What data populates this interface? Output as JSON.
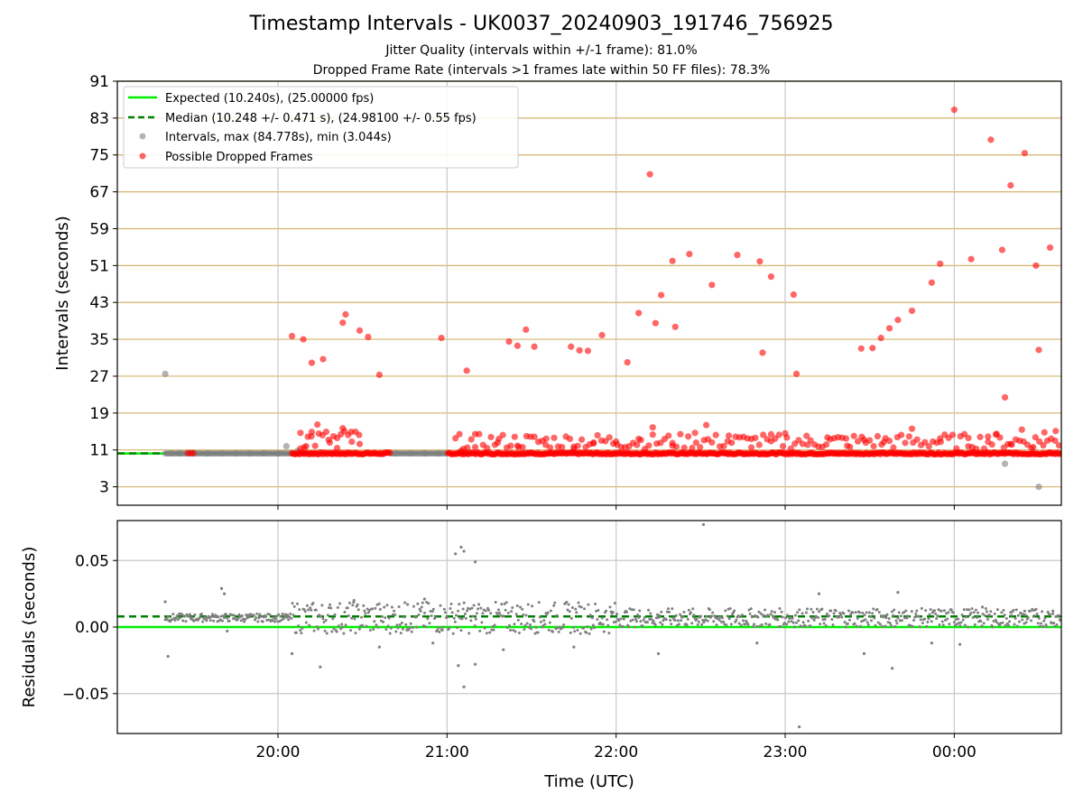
{
  "title": "Timestamp Intervals - UK0037_20240903_191746_756925",
  "subtitle_lines": [
    "Jitter Quality (intervals within +/-1 frame): 81.0%",
    "Dropped Frame Rate (intervals >1 frames late within 50 FF files): 78.3%"
  ],
  "colors": {
    "expected": "#00ee00",
    "median": "#008000",
    "intervals": "#808080",
    "dropped": "#ff0000",
    "hgrid_top": "#d4b36a",
    "grid": "#c8c8c8",
    "axis": "#000000"
  },
  "chart_data": [
    {
      "type": "scatter",
      "panel": "intervals",
      "xlabel": "",
      "ylabel": "Intervals (seconds)",
      "xlim": [
        "19:03",
        "00:38"
      ],
      "ylim": [
        -1,
        91
      ],
      "yticks": [
        3,
        11,
        19,
        27,
        35,
        43,
        51,
        59,
        67,
        75,
        83,
        91
      ],
      "xticks": [
        "20:00",
        "21:00",
        "22:00",
        "23:00",
        "00:00"
      ],
      "xtick_labels_shown": false,
      "grid": "horizontal and vertical",
      "legend_position": "top-left",
      "legend": [
        "Expected (10.240s), (25.00000 fps)",
        "Median (10.248 +/- 0.471 s), (24.98100 +/- 0.55 fps)",
        "Intervals, max (84.778s), min (3.044s)",
        "Possible Dropped Frames"
      ],
      "reference_lines": {
        "expected": 10.24,
        "median": 10.248
      },
      "series": [
        {
          "name": "Intervals, max (84.778s), min (3.044s)",
          "points": [
            [
              "19:20",
              27.5
            ],
            [
              "20:03",
              11.8
            ],
            [
              "20:07",
              10.8
            ],
            [
              "00:18",
              8.0
            ],
            [
              "00:30",
              3.0
            ],
            [
              "19:22",
              10.24
            ],
            [
              "19:25",
              10.24
            ],
            [
              "19:30",
              10.24
            ],
            [
              "19:35",
              10.24
            ],
            [
              "19:40",
              10.24
            ],
            [
              "19:45",
              10.24
            ],
            [
              "19:50",
              10.24
            ],
            [
              "19:55",
              10.24
            ],
            [
              "20:00",
              10.24
            ],
            [
              "20:42",
              10.24
            ],
            [
              "20:47",
              10.24
            ],
            [
              "20:52",
              10.24
            ],
            [
              "20:57",
              10.24
            ]
          ]
        },
        {
          "name": "Possible Dropped Frames",
          "points": [
            [
              "20:05",
              35.7
            ],
            [
              "20:09",
              35.0
            ],
            [
              "20:12",
              29.9
            ],
            [
              "20:16",
              30.7
            ],
            [
              "20:23",
              38.6
            ],
            [
              "20:24",
              40.4
            ],
            [
              "20:29",
              36.9
            ],
            [
              "20:32",
              35.5
            ],
            [
              "20:36",
              27.3
            ],
            [
              "20:58",
              35.3
            ],
            [
              "21:07",
              28.2
            ],
            [
              "21:22",
              34.5
            ],
            [
              "21:25",
              33.6
            ],
            [
              "21:28",
              37.1
            ],
            [
              "21:31",
              33.4
            ],
            [
              "21:44",
              33.4
            ],
            [
              "21:47",
              32.6
            ],
            [
              "21:50",
              32.5
            ],
            [
              "21:55",
              35.9
            ],
            [
              "22:04",
              30.0
            ],
            [
              "22:08",
              40.7
            ],
            [
              "22:12",
              70.8
            ],
            [
              "22:14",
              38.5
            ],
            [
              "22:16",
              44.6
            ],
            [
              "22:20",
              52.0
            ],
            [
              "22:21",
              37.7
            ],
            [
              "22:26",
              53.5
            ],
            [
              "22:34",
              46.8
            ],
            [
              "22:43",
              53.3
            ],
            [
              "22:51",
              51.9
            ],
            [
              "22:52",
              32.1
            ],
            [
              "22:55",
              48.6
            ],
            [
              "23:03",
              44.7
            ],
            [
              "23:04",
              27.5
            ],
            [
              "23:27",
              33.0
            ],
            [
              "23:31",
              33.1
            ],
            [
              "23:34",
              35.3
            ],
            [
              "23:37",
              37.4
            ],
            [
              "23:40",
              39.2
            ],
            [
              "23:45",
              41.2
            ],
            [
              "23:52",
              47.3
            ],
            [
              "23:55",
              51.4
            ],
            [
              "00:00",
              84.8
            ],
            [
              "00:06",
              52.4
            ],
            [
              "00:13",
              78.3
            ],
            [
              "00:17",
              54.4
            ],
            [
              "00:18",
              22.4
            ],
            [
              "00:20",
              68.4
            ],
            [
              "00:25",
              75.4
            ],
            [
              "00:29",
              51.0
            ],
            [
              "00:30",
              32.7
            ],
            [
              "00:34",
              54.9
            ],
            [
              "19:28",
              10.3
            ],
            [
              "19:29",
              10.3
            ],
            [
              "19:30",
              10.3
            ],
            [
              "20:08",
              14.7
            ],
            [
              "20:10",
              11.8
            ],
            [
              "20:12",
              14.9
            ],
            [
              "20:14",
              16.5
            ],
            [
              "20:18",
              13.2
            ],
            [
              "20:21",
              11.4
            ],
            [
              "20:23",
              15.7
            ],
            [
              "20:26",
              14.9
            ],
            [
              "20:29",
              12.3
            ],
            [
              "21:05",
              10.8
            ],
            [
              "21:10",
              11.6
            ],
            [
              "21:18",
              12.6
            ],
            [
              "21:25",
              11.9
            ],
            [
              "21:35",
              12.1
            ],
            [
              "21:45",
              11.7
            ],
            [
              "21:52",
              12.4
            ],
            [
              "22:00",
              12.8
            ],
            [
              "22:08",
              13.4
            ],
            [
              "22:13",
              15.9
            ],
            [
              "22:20",
              12.5
            ],
            [
              "22:28",
              14.7
            ],
            [
              "22:32",
              16.4
            ],
            [
              "22:40",
              14.1
            ],
            [
              "22:48",
              13.4
            ],
            [
              "22:55",
              12.9
            ],
            [
              "23:00",
              14.6
            ],
            [
              "23:08",
              12.1
            ],
            [
              "23:15",
              13.7
            ],
            [
              "23:22",
              11.9
            ],
            [
              "23:28",
              13.2
            ],
            [
              "23:35",
              12.7
            ],
            [
              "23:45",
              15.6
            ],
            [
              "23:55",
              13.5
            ],
            [
              "00:05",
              13.6
            ],
            [
              "00:12",
              13.9
            ],
            [
              "00:15",
              14.5
            ],
            [
              "00:20",
              12.3
            ],
            [
              "00:24",
              15.4
            ],
            [
              "00:28",
              11.6
            ],
            [
              "00:32",
              14.8
            ],
            [
              "00:36",
              15.1
            ]
          ],
          "dense_band": {
            "from": "20:05",
            "to": "00:38",
            "value": 10.24,
            "gap": [
              "20:40",
              "21:00"
            ]
          }
        }
      ]
    },
    {
      "type": "scatter",
      "panel": "residuals",
      "xlabel": "Time (UTC)",
      "ylabel": "Residuals (seconds)",
      "xlim": [
        "19:03",
        "00:38"
      ],
      "ylim": [
        -0.08,
        0.08
      ],
      "yticks": [
        -0.05,
        0.0,
        0.05
      ],
      "ytick_labels": [
        "−0.05",
        "0.00",
        "0.05"
      ],
      "xticks": [
        "20:00",
        "21:00",
        "22:00",
        "23:00",
        "00:00"
      ],
      "grid": "horizontal and vertical",
      "reference_lines": {
        "expected": 0.0,
        "median": 0.008
      },
      "series": [
        {
          "name": "Residuals",
          "outliers": [
            [
              "19:20",
              0.019
            ],
            [
              "19:21",
              -0.022
            ],
            [
              "19:40",
              0.029
            ],
            [
              "19:41",
              0.025
            ],
            [
              "19:42",
              -0.003
            ],
            [
              "20:05",
              -0.02
            ],
            [
              "20:15",
              -0.03
            ],
            [
              "20:27",
              0.02
            ],
            [
              "20:36",
              -0.015
            ],
            [
              "20:46",
              0.017
            ],
            [
              "20:52",
              0.021
            ],
            [
              "20:55",
              -0.012
            ],
            [
              "21:03",
              0.055
            ],
            [
              "21:05",
              0.06
            ],
            [
              "21:06",
              0.057
            ],
            [
              "21:10",
              0.049
            ],
            [
              "21:04",
              -0.029
            ],
            [
              "21:06",
              -0.045
            ],
            [
              "21:10",
              -0.028
            ],
            [
              "21:20",
              -0.017
            ],
            [
              "21:45",
              -0.015
            ],
            [
              "22:15",
              -0.02
            ],
            [
              "22:31",
              0.077
            ],
            [
              "22:50",
              -0.012
            ],
            [
              "23:05",
              -0.075
            ],
            [
              "23:12",
              0.025
            ],
            [
              "23:28",
              -0.02
            ],
            [
              "23:38",
              -0.031
            ],
            [
              "23:40",
              0.026
            ],
            [
              "23:52",
              -0.012
            ],
            [
              "00:02",
              -0.013
            ],
            [
              "00:10",
              0.015
            ],
            [
              "00:25",
              0.012
            ],
            [
              "00:35",
              0.012
            ]
          ],
          "spread": {
            "from": "19:20",
            "to": "00:38",
            "center": 0.007,
            "amplitude_early": 0.003,
            "amplitude_mid": 0.012,
            "amplitude_late": 0.007
          }
        }
      ]
    }
  ]
}
